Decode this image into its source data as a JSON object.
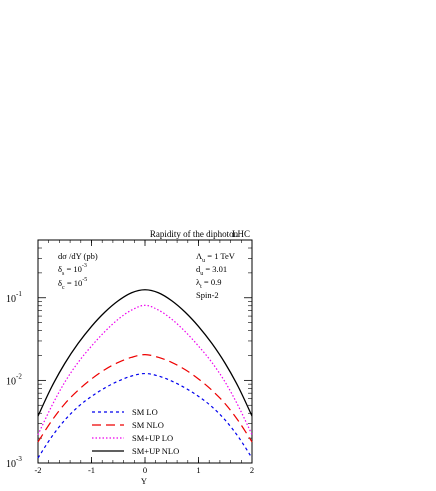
{
  "chart_data": {
    "type": "line",
    "title": "Rapidity of the diphoton",
    "collider_label": "LHC",
    "xlabel": "Y",
    "ylabel": "dσ /dY (pb)",
    "xlim": [
      -2,
      2
    ],
    "ylim": [
      0.001,
      0.5
    ],
    "yscale": "log",
    "x_ticks": [
      -2,
      -1,
      0,
      1,
      2
    ],
    "x_tick_labels": [
      "-2",
      "-1",
      "0",
      "1",
      "2"
    ],
    "y_ticks": [
      0.001,
      0.01,
      0.1
    ],
    "y_tick_bases": [
      "10",
      "10",
      "10"
    ],
    "y_tick_exponents": [
      "-3",
      "-2",
      "-1"
    ],
    "cuts": [
      {
        "symbol": "δ",
        "sub": "s",
        "value": " = 10",
        "exp": "-3"
      },
      {
        "symbol": "δ",
        "sub": "c",
        "value": " = 10",
        "exp": "-5"
      }
    ],
    "params": [
      {
        "symbol": "Λ",
        "sub": "u",
        "value": " = 1 TeV"
      },
      {
        "symbol": "d",
        "sub": "u",
        "value": " = 3.01"
      },
      {
        "symbol": "λ",
        "sub": "t",
        "value": " = 0.9"
      },
      {
        "symbol": "Spin-2",
        "sub": "",
        "value": ""
      }
    ],
    "legend_position": "bottom-center",
    "x": [
      -2.0,
      -1.75,
      -1.5,
      -1.25,
      -1.0,
      -0.75,
      -0.5,
      -0.25,
      0.0,
      0.25,
      0.5,
      0.75,
      1.0,
      1.25,
      1.5,
      1.75,
      2.0
    ],
    "series": [
      {
        "name": "SM LO",
        "color": "#0000ee",
        "dash": "3,3",
        "width": 1.2,
        "values": [
          0.00115,
          0.00205,
          0.0033,
          0.0048,
          0.0064,
          0.0081,
          0.0098,
          0.0113,
          0.0121,
          0.0113,
          0.0098,
          0.0081,
          0.0064,
          0.0048,
          0.0033,
          0.00205,
          0.00115
        ]
      },
      {
        "name": "SM NLO",
        "color": "#ee0000",
        "dash": "9,5",
        "width": 1.2,
        "values": [
          0.0018,
          0.0032,
          0.0052,
          0.0076,
          0.0104,
          0.0135,
          0.0165,
          0.019,
          0.0205,
          0.019,
          0.0165,
          0.0135,
          0.0104,
          0.0076,
          0.0052,
          0.0032,
          0.0018
        ]
      },
      {
        "name": "SM+UP LO",
        "color": "#ee00ee",
        "dash": "1.5,2",
        "width": 1.2,
        "values": [
          0.0022,
          0.0048,
          0.0095,
          0.0165,
          0.026,
          0.039,
          0.055,
          0.071,
          0.081,
          0.071,
          0.055,
          0.039,
          0.026,
          0.0165,
          0.0095,
          0.0048,
          0.0022
        ]
      },
      {
        "name": "SM+UP NLO",
        "color": "#000000",
        "dash": "",
        "width": 1.3,
        "values": [
          0.0037,
          0.0082,
          0.016,
          0.028,
          0.045,
          0.067,
          0.092,
          0.115,
          0.125,
          0.115,
          0.092,
          0.067,
          0.045,
          0.028,
          0.016,
          0.0082,
          0.0037
        ]
      }
    ]
  }
}
